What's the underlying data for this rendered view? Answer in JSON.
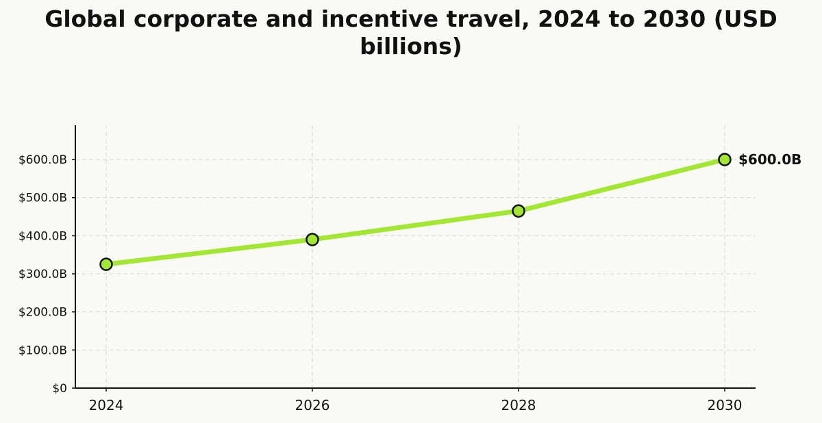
{
  "chart_data": {
    "type": "line",
    "title": "Global corporate and incentive travel, 2024 to 2030 (USD billions)",
    "xlabel": "",
    "ylabel": "",
    "x": [
      2024,
      2026,
      2028,
      2030
    ],
    "series": [
      {
        "values": [
          325,
          390,
          465,
          600
        ]
      }
    ],
    "x_ticks": [
      "2024",
      "2026",
      "2028",
      "2030"
    ],
    "y_ticks": [
      0,
      100,
      200,
      300,
      400,
      500,
      600
    ],
    "y_tick_labels": [
      "$0",
      "$100.0B",
      "$200.0B",
      "$300.0B",
      "$400.0B",
      "$500.0B",
      "$600.0B"
    ],
    "ylim": [
      0,
      690
    ],
    "xlim": [
      2023.7,
      2030.3
    ],
    "annotations": [
      {
        "x": 2030,
        "label": "$600.0B"
      }
    ],
    "grid": true,
    "colors": {
      "line": "#a3e635",
      "marker_edge": "#111111",
      "background": "#f9f9f5",
      "grid": "#d6d6d0"
    }
  }
}
